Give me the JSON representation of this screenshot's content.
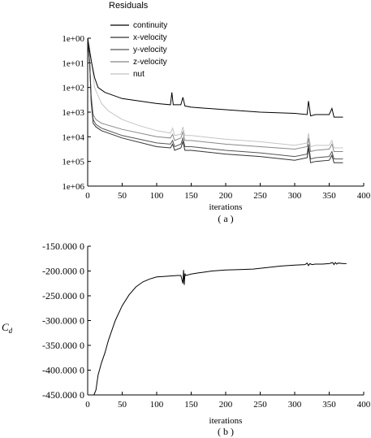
{
  "chart_data": [
    {
      "type": "line",
      "title": "Residuals",
      "caption": "( a )",
      "xlabel": "iterations",
      "ylabel": "",
      "xlim": [
        0,
        400
      ],
      "x_ticks": [
        0,
        50,
        100,
        150,
        200,
        250,
        300,
        350,
        400
      ],
      "y_scale": "log",
      "y_ticks": [
        "1e+00",
        "1e+01",
        "1e+02",
        "1e+03",
        "1e+04",
        "1e+05",
        "1e+06"
      ],
      "legend_position": "top",
      "series": [
        {
          "name": "continuity",
          "color": "#000000",
          "x": [
            0,
            5,
            10,
            15,
            25,
            50,
            100,
            120,
            122,
            124,
            135,
            138,
            141,
            150,
            200,
            250,
            300,
            318,
            320,
            323,
            330,
            350,
            354,
            357,
            365,
            370
          ],
          "y": [
            0,
            0.9,
            1.6,
            2.0,
            2.2,
            2.45,
            2.65,
            2.7,
            2.2,
            2.7,
            2.7,
            2.4,
            2.75,
            2.8,
            2.9,
            3.0,
            3.05,
            3.1,
            2.55,
            3.15,
            3.1,
            3.1,
            2.85,
            3.2,
            3.2,
            3.2
          ]
        },
        {
          "name": "x-velocity",
          "color": "#333333",
          "x": [
            0,
            3,
            5,
            8,
            12,
            20,
            50,
            100,
            120,
            123,
            126,
            135,
            138,
            141,
            150,
            200,
            250,
            300,
            318,
            320,
            323,
            330,
            350,
            354,
            357,
            365,
            370
          ],
          "y": [
            0,
            1.0,
            2.6,
            3.45,
            3.6,
            3.75,
            4.05,
            4.4,
            4.45,
            4.3,
            4.55,
            4.45,
            4.2,
            4.55,
            4.55,
            4.7,
            4.8,
            4.95,
            4.85,
            4.45,
            5.05,
            5.0,
            4.95,
            4.75,
            5.05,
            5.05,
            5.05
          ]
        },
        {
          "name": "y-velocity",
          "color": "#555555",
          "x": [
            0,
            3,
            5,
            8,
            12,
            20,
            50,
            100,
            120,
            123,
            126,
            135,
            138,
            141,
            150,
            200,
            250,
            300,
            318,
            320,
            323,
            330,
            350,
            354,
            357,
            365,
            370
          ],
          "y": [
            0,
            1.0,
            2.5,
            3.3,
            3.5,
            3.65,
            3.95,
            4.25,
            4.3,
            4.15,
            4.4,
            4.3,
            4.05,
            4.4,
            4.4,
            4.55,
            4.65,
            4.8,
            4.7,
            4.3,
            4.9,
            4.85,
            4.8,
            4.6,
            4.9,
            4.9,
            4.9
          ]
        },
        {
          "name": "z-velocity",
          "color": "#888888",
          "x": [
            0,
            3,
            5,
            8,
            12,
            20,
            50,
            100,
            120,
            123,
            126,
            135,
            138,
            141,
            150,
            200,
            250,
            300,
            318,
            320,
            323,
            330,
            350,
            354,
            357,
            365,
            370
          ],
          "y": [
            0,
            1.0,
            2.3,
            3.1,
            3.3,
            3.45,
            3.7,
            4.0,
            4.05,
            3.9,
            4.15,
            4.05,
            3.8,
            4.15,
            4.15,
            4.3,
            4.4,
            4.5,
            4.4,
            4.05,
            4.6,
            4.55,
            4.5,
            4.3,
            4.6,
            4.6,
            4.6
          ]
        },
        {
          "name": "nut",
          "color": "#c4c4c4",
          "x": [
            0,
            5,
            10,
            20,
            30,
            50,
            75,
            100,
            120,
            123,
            126,
            135,
            138,
            141,
            150,
            200,
            250,
            300,
            318,
            320,
            323,
            330,
            350,
            354,
            357,
            365,
            370
          ],
          "y": [
            0,
            0.8,
            2.0,
            2.65,
            2.95,
            3.3,
            3.55,
            3.75,
            3.85,
            3.65,
            3.95,
            3.9,
            3.6,
            3.95,
            3.95,
            4.1,
            4.2,
            4.35,
            4.25,
            3.85,
            4.4,
            4.35,
            4.35,
            4.15,
            4.45,
            4.45,
            4.45
          ]
        }
      ]
    },
    {
      "type": "line",
      "title": "",
      "caption": "( b )",
      "xlabel": "iterations",
      "ylabel": "C",
      "ylabel_sub": "d",
      "xlim": [
        0,
        400
      ],
      "ylim": [
        -450,
        -150
      ],
      "x_ticks": [
        0,
        50,
        100,
        150,
        200,
        250,
        300,
        350,
        400
      ],
      "y_ticks": [
        -150,
        -200,
        -250,
        -300,
        -350,
        -400,
        -450
      ],
      "y_tick_labels": [
        "-150.000 0",
        "-200.000 0",
        "-250.000 0",
        "-300.000 0",
        "-350.000 0",
        "-400.000 0",
        "-450.000 0"
      ],
      "series": [
        {
          "color": "#000000",
          "x": [
            9,
            12,
            15,
            20,
            25,
            30,
            40,
            50,
            60,
            70,
            80,
            90,
            100,
            110,
            120,
            130,
            135,
            138,
            139,
            140,
            141,
            142,
            145,
            150,
            160,
            170,
            180,
            200,
            220,
            240,
            260,
            280,
            300,
            315,
            318,
            320,
            322,
            325,
            330,
            340,
            350,
            355,
            357,
            359,
            361,
            363,
            370,
            375
          ],
          "y": [
            -450,
            -440,
            -410,
            -385,
            -365,
            -340,
            -300,
            -270,
            -248,
            -232,
            -222,
            -216,
            -212,
            -211,
            -210,
            -209,
            -209,
            -225,
            -198,
            -228,
            -205,
            -209,
            -208,
            -206,
            -204,
            -202,
            -200,
            -198,
            -197,
            -196,
            -193,
            -190,
            -188,
            -187,
            -184,
            -189,
            -185,
            -187,
            -186,
            -186,
            -185,
            -183,
            -187,
            -183,
            -186,
            -184,
            -185,
            -185
          ]
        }
      ]
    }
  ]
}
